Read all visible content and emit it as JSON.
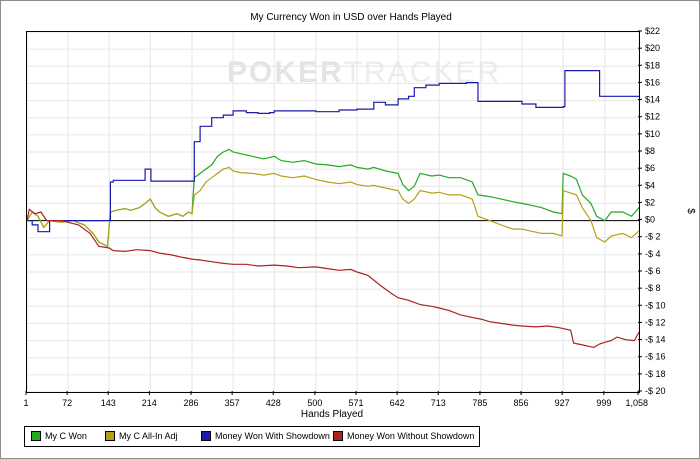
{
  "chart_data": {
    "type": "line",
    "title": "My Currency Won in USD over Hands Played",
    "xlabel": "Hands Played",
    "ylabel": "$",
    "xlim": [
      1,
      1058
    ],
    "ylim": [
      -20,
      22
    ],
    "x_ticks": [
      {
        "v": 1,
        "label": "1"
      },
      {
        "v": 72,
        "label": "72"
      },
      {
        "v": 143,
        "label": "143"
      },
      {
        "v": 214,
        "label": "214"
      },
      {
        "v": 286,
        "label": "286"
      },
      {
        "v": 357,
        "label": "357"
      },
      {
        "v": 428,
        "label": "428"
      },
      {
        "v": 500,
        "label": "500"
      },
      {
        "v": 571,
        "label": "571"
      },
      {
        "v": 642,
        "label": "642"
      },
      {
        "v": 713,
        "label": "713"
      },
      {
        "v": 785,
        "label": "785"
      },
      {
        "v": 856,
        "label": "856"
      },
      {
        "v": 927,
        "label": "927"
      },
      {
        "v": 999,
        "label": "999"
      },
      {
        "v": 1058,
        "label": "1,058"
      }
    ],
    "y_ticks": [
      {
        "v": 22,
        "label": "$22"
      },
      {
        "v": 20,
        "label": "$20"
      },
      {
        "v": 18,
        "label": "$18"
      },
      {
        "v": 16,
        "label": "$16"
      },
      {
        "v": 14,
        "label": "$14"
      },
      {
        "v": 12,
        "label": "$12"
      },
      {
        "v": 10,
        "label": "$10"
      },
      {
        "v": 8,
        "label": "$8"
      },
      {
        "v": 6,
        "label": "$6"
      },
      {
        "v": 4,
        "label": "$4"
      },
      {
        "v": 2,
        "label": "$2"
      },
      {
        "v": 0,
        "label": "$0"
      },
      {
        "v": -2,
        "label": "-$ 2"
      },
      {
        "v": -4,
        "label": "-$ 4"
      },
      {
        "v": -6,
        "label": "-$ 6"
      },
      {
        "v": -8,
        "label": "-$ 8"
      },
      {
        "v": -10,
        "label": "-$ 10"
      },
      {
        "v": -12,
        "label": "-$ 12"
      },
      {
        "v": -14,
        "label": "-$ 14"
      },
      {
        "v": -16,
        "label": "-$ 16"
      },
      {
        "v": -18,
        "label": "-$ 18"
      },
      {
        "v": -20,
        "label": "-$ 20"
      }
    ],
    "grid": true,
    "legend_position": "bottom-left",
    "series": [
      {
        "name": "My C Won",
        "color": "#22aa22",
        "step": false,
        "points": [
          [
            1,
            0
          ],
          [
            10,
            1
          ],
          [
            20,
            0.5
          ],
          [
            30,
            -0.8
          ],
          [
            40,
            0
          ],
          [
            60,
            -0.2
          ],
          [
            80,
            0
          ],
          [
            100,
            -0.5
          ],
          [
            115,
            -1.5
          ],
          [
            125,
            -2.5
          ],
          [
            140,
            -3
          ],
          [
            145,
            1
          ],
          [
            155,
            1.2
          ],
          [
            170,
            1.4
          ],
          [
            180,
            1.2
          ],
          [
            195,
            1.5
          ],
          [
            205,
            2
          ],
          [
            214,
            2.5
          ],
          [
            222,
            1.5
          ],
          [
            230,
            1
          ],
          [
            245,
            0.5
          ],
          [
            260,
            0.8
          ],
          [
            270,
            0.5
          ],
          [
            280,
            1
          ],
          [
            286,
            0.8
          ],
          [
            290,
            5
          ],
          [
            300,
            5.5
          ],
          [
            310,
            6
          ],
          [
            320,
            6.5
          ],
          [
            330,
            7.5
          ],
          [
            340,
            8
          ],
          [
            350,
            8.3
          ],
          [
            357,
            8
          ],
          [
            370,
            7.8
          ],
          [
            390,
            7.5
          ],
          [
            410,
            7.2
          ],
          [
            428,
            7.5
          ],
          [
            440,
            7
          ],
          [
            460,
            6.8
          ],
          [
            480,
            7
          ],
          [
            500,
            6.6
          ],
          [
            520,
            6.5
          ],
          [
            540,
            6.3
          ],
          [
            560,
            6.5
          ],
          [
            571,
            6.2
          ],
          [
            590,
            6
          ],
          [
            600,
            6.2
          ],
          [
            620,
            5.8
          ],
          [
            642,
            5.5
          ],
          [
            650,
            4.2
          ],
          [
            660,
            3.5
          ],
          [
            670,
            4
          ],
          [
            680,
            5.5
          ],
          [
            700,
            5.2
          ],
          [
            713,
            5.3
          ],
          [
            730,
            5
          ],
          [
            750,
            5
          ],
          [
            770,
            4.5
          ],
          [
            780,
            3
          ],
          [
            800,
            2.8
          ],
          [
            820,
            2.5
          ],
          [
            840,
            2.2
          ],
          [
            856,
            2
          ],
          [
            870,
            1.8
          ],
          [
            890,
            1.5
          ],
          [
            910,
            1
          ],
          [
            925,
            0.8
          ],
          [
            927,
            5.5
          ],
          [
            940,
            5.2
          ],
          [
            950,
            4.8
          ],
          [
            960,
            3
          ],
          [
            975,
            2
          ],
          [
            985,
            0.5
          ],
          [
            999,
            0
          ],
          [
            1010,
            1
          ],
          [
            1030,
            1
          ],
          [
            1045,
            0.5
          ],
          [
            1058,
            1.5
          ]
        ]
      },
      {
        "name": "My C All-In Adj",
        "color": "#b3a01a",
        "step": false,
        "points": [
          [
            1,
            0
          ],
          [
            10,
            1
          ],
          [
            20,
            0.5
          ],
          [
            30,
            -0.8
          ],
          [
            40,
            0
          ],
          [
            60,
            -0.2
          ],
          [
            80,
            0
          ],
          [
            100,
            -0.5
          ],
          [
            115,
            -1.5
          ],
          [
            125,
            -2.5
          ],
          [
            140,
            -3
          ],
          [
            145,
            1
          ],
          [
            155,
            1.2
          ],
          [
            170,
            1.4
          ],
          [
            180,
            1.2
          ],
          [
            195,
            1.5
          ],
          [
            205,
            2
          ],
          [
            214,
            2.5
          ],
          [
            222,
            1.5
          ],
          [
            230,
            1
          ],
          [
            245,
            0.5
          ],
          [
            260,
            0.8
          ],
          [
            270,
            0.5
          ],
          [
            280,
            1
          ],
          [
            286,
            0.8
          ],
          [
            290,
            3
          ],
          [
            300,
            3.5
          ],
          [
            310,
            4.5
          ],
          [
            320,
            5
          ],
          [
            330,
            5.5
          ],
          [
            340,
            6
          ],
          [
            350,
            6.2
          ],
          [
            357,
            5.8
          ],
          [
            370,
            5.6
          ],
          [
            390,
            5.5
          ],
          [
            410,
            5.3
          ],
          [
            428,
            5.5
          ],
          [
            440,
            5.2
          ],
          [
            460,
            5
          ],
          [
            480,
            5.2
          ],
          [
            500,
            4.8
          ],
          [
            520,
            4.5
          ],
          [
            540,
            4.3
          ],
          [
            560,
            4.5
          ],
          [
            571,
            4.2
          ],
          [
            590,
            4
          ],
          [
            600,
            4.1
          ],
          [
            620,
            3.8
          ],
          [
            642,
            3.5
          ],
          [
            650,
            2.5
          ],
          [
            660,
            2
          ],
          [
            670,
            2.5
          ],
          [
            680,
            3.5
          ],
          [
            700,
            3.2
          ],
          [
            713,
            3.3
          ],
          [
            730,
            3
          ],
          [
            750,
            3
          ],
          [
            770,
            2.5
          ],
          [
            780,
            0.5
          ],
          [
            800,
            0
          ],
          [
            820,
            -0.5
          ],
          [
            840,
            -1
          ],
          [
            856,
            -1
          ],
          [
            870,
            -1.2
          ],
          [
            890,
            -1.5
          ],
          [
            910,
            -1.5
          ],
          [
            925,
            -1.8
          ],
          [
            927,
            3.5
          ],
          [
            940,
            3.2
          ],
          [
            950,
            3
          ],
          [
            960,
            1.5
          ],
          [
            975,
            0
          ],
          [
            985,
            -2
          ],
          [
            999,
            -2.5
          ],
          [
            1010,
            -1.8
          ],
          [
            1030,
            -1.5
          ],
          [
            1045,
            -2
          ],
          [
            1058,
            -1.2
          ]
        ]
      },
      {
        "name": "Money Won With Showdown",
        "color": "#1a1aaa",
        "step": true,
        "points": [
          [
            1,
            0
          ],
          [
            10,
            -0.5
          ],
          [
            20,
            -1.3
          ],
          [
            40,
            0
          ],
          [
            143,
            0
          ],
          [
            145,
            4.5
          ],
          [
            150,
            4.7
          ],
          [
            205,
            6
          ],
          [
            215,
            4.6
          ],
          [
            286,
            4.6
          ],
          [
            290,
            9.2
          ],
          [
            300,
            11
          ],
          [
            320,
            12
          ],
          [
            340,
            12.3
          ],
          [
            357,
            12.8
          ],
          [
            380,
            12.6
          ],
          [
            400,
            12.5
          ],
          [
            420,
            12.6
          ],
          [
            428,
            12.8
          ],
          [
            500,
            12.7
          ],
          [
            540,
            12.9
          ],
          [
            571,
            13
          ],
          [
            600,
            13.8
          ],
          [
            620,
            13.5
          ],
          [
            642,
            14.2
          ],
          [
            660,
            14.5
          ],
          [
            670,
            15.5
          ],
          [
            690,
            15.8
          ],
          [
            713,
            16
          ],
          [
            760,
            16.1
          ],
          [
            780,
            13.9
          ],
          [
            856,
            13.6
          ],
          [
            880,
            13.2
          ],
          [
            927,
            13.3
          ],
          [
            930,
            17.5
          ],
          [
            980,
            17.5
          ],
          [
            990,
            14.5
          ],
          [
            1058,
            14.5
          ]
        ]
      },
      {
        "name": "Money Won Without Showdown",
        "color": "#aa2222",
        "step": false,
        "points": [
          [
            1,
            0
          ],
          [
            5,
            1.3
          ],
          [
            15,
            0.8
          ],
          [
            25,
            1
          ],
          [
            35,
            0
          ],
          [
            60,
            0
          ],
          [
            90,
            -0.5
          ],
          [
            110,
            -1.5
          ],
          [
            125,
            -3
          ],
          [
            143,
            -3.2
          ],
          [
            150,
            -3.5
          ],
          [
            170,
            -3.6
          ],
          [
            190,
            -3.4
          ],
          [
            214,
            -3.5
          ],
          [
            230,
            -3.8
          ],
          [
            250,
            -4
          ],
          [
            270,
            -4.3
          ],
          [
            286,
            -4.5
          ],
          [
            300,
            -4.6
          ],
          [
            320,
            -4.8
          ],
          [
            340,
            -5
          ],
          [
            357,
            -5.1
          ],
          [
            380,
            -5.1
          ],
          [
            400,
            -5.3
          ],
          [
            428,
            -5.2
          ],
          [
            450,
            -5.3
          ],
          [
            470,
            -5.5
          ],
          [
            500,
            -5.4
          ],
          [
            520,
            -5.6
          ],
          [
            540,
            -5.8
          ],
          [
            560,
            -5.7
          ],
          [
            571,
            -6
          ],
          [
            590,
            -6.4
          ],
          [
            610,
            -7.5
          ],
          [
            630,
            -8.5
          ],
          [
            642,
            -9
          ],
          [
            660,
            -9.3
          ],
          [
            680,
            -9.8
          ],
          [
            700,
            -10
          ],
          [
            713,
            -10.2
          ],
          [
            730,
            -10.5
          ],
          [
            750,
            -11
          ],
          [
            770,
            -11.3
          ],
          [
            785,
            -11.5
          ],
          [
            800,
            -11.8
          ],
          [
            820,
            -12
          ],
          [
            840,
            -12.2
          ],
          [
            856,
            -12.3
          ],
          [
            880,
            -12.4
          ],
          [
            900,
            -12.3
          ],
          [
            920,
            -12.5
          ],
          [
            927,
            -12.6
          ],
          [
            940,
            -12.8
          ],
          [
            945,
            -14.3
          ],
          [
            960,
            -14.5
          ],
          [
            980,
            -14.8
          ],
          [
            990,
            -14.4
          ],
          [
            999,
            -14.2
          ],
          [
            1010,
            -14
          ],
          [
            1020,
            -13.6
          ],
          [
            1035,
            -13.9
          ],
          [
            1050,
            -14
          ],
          [
            1058,
            -13
          ]
        ]
      }
    ]
  },
  "watermark": {
    "part1": "POKER",
    "part2": "TRACKER"
  },
  "legend": [
    {
      "label": "My C Won",
      "color": "#22aa22"
    },
    {
      "label": "My C All-In Adj",
      "color": "#b3a01a"
    },
    {
      "label": "Money Won With Showdown",
      "color": "#1a1aaa"
    },
    {
      "label": "Money Won Without Showdown",
      "color": "#aa2222"
    }
  ]
}
